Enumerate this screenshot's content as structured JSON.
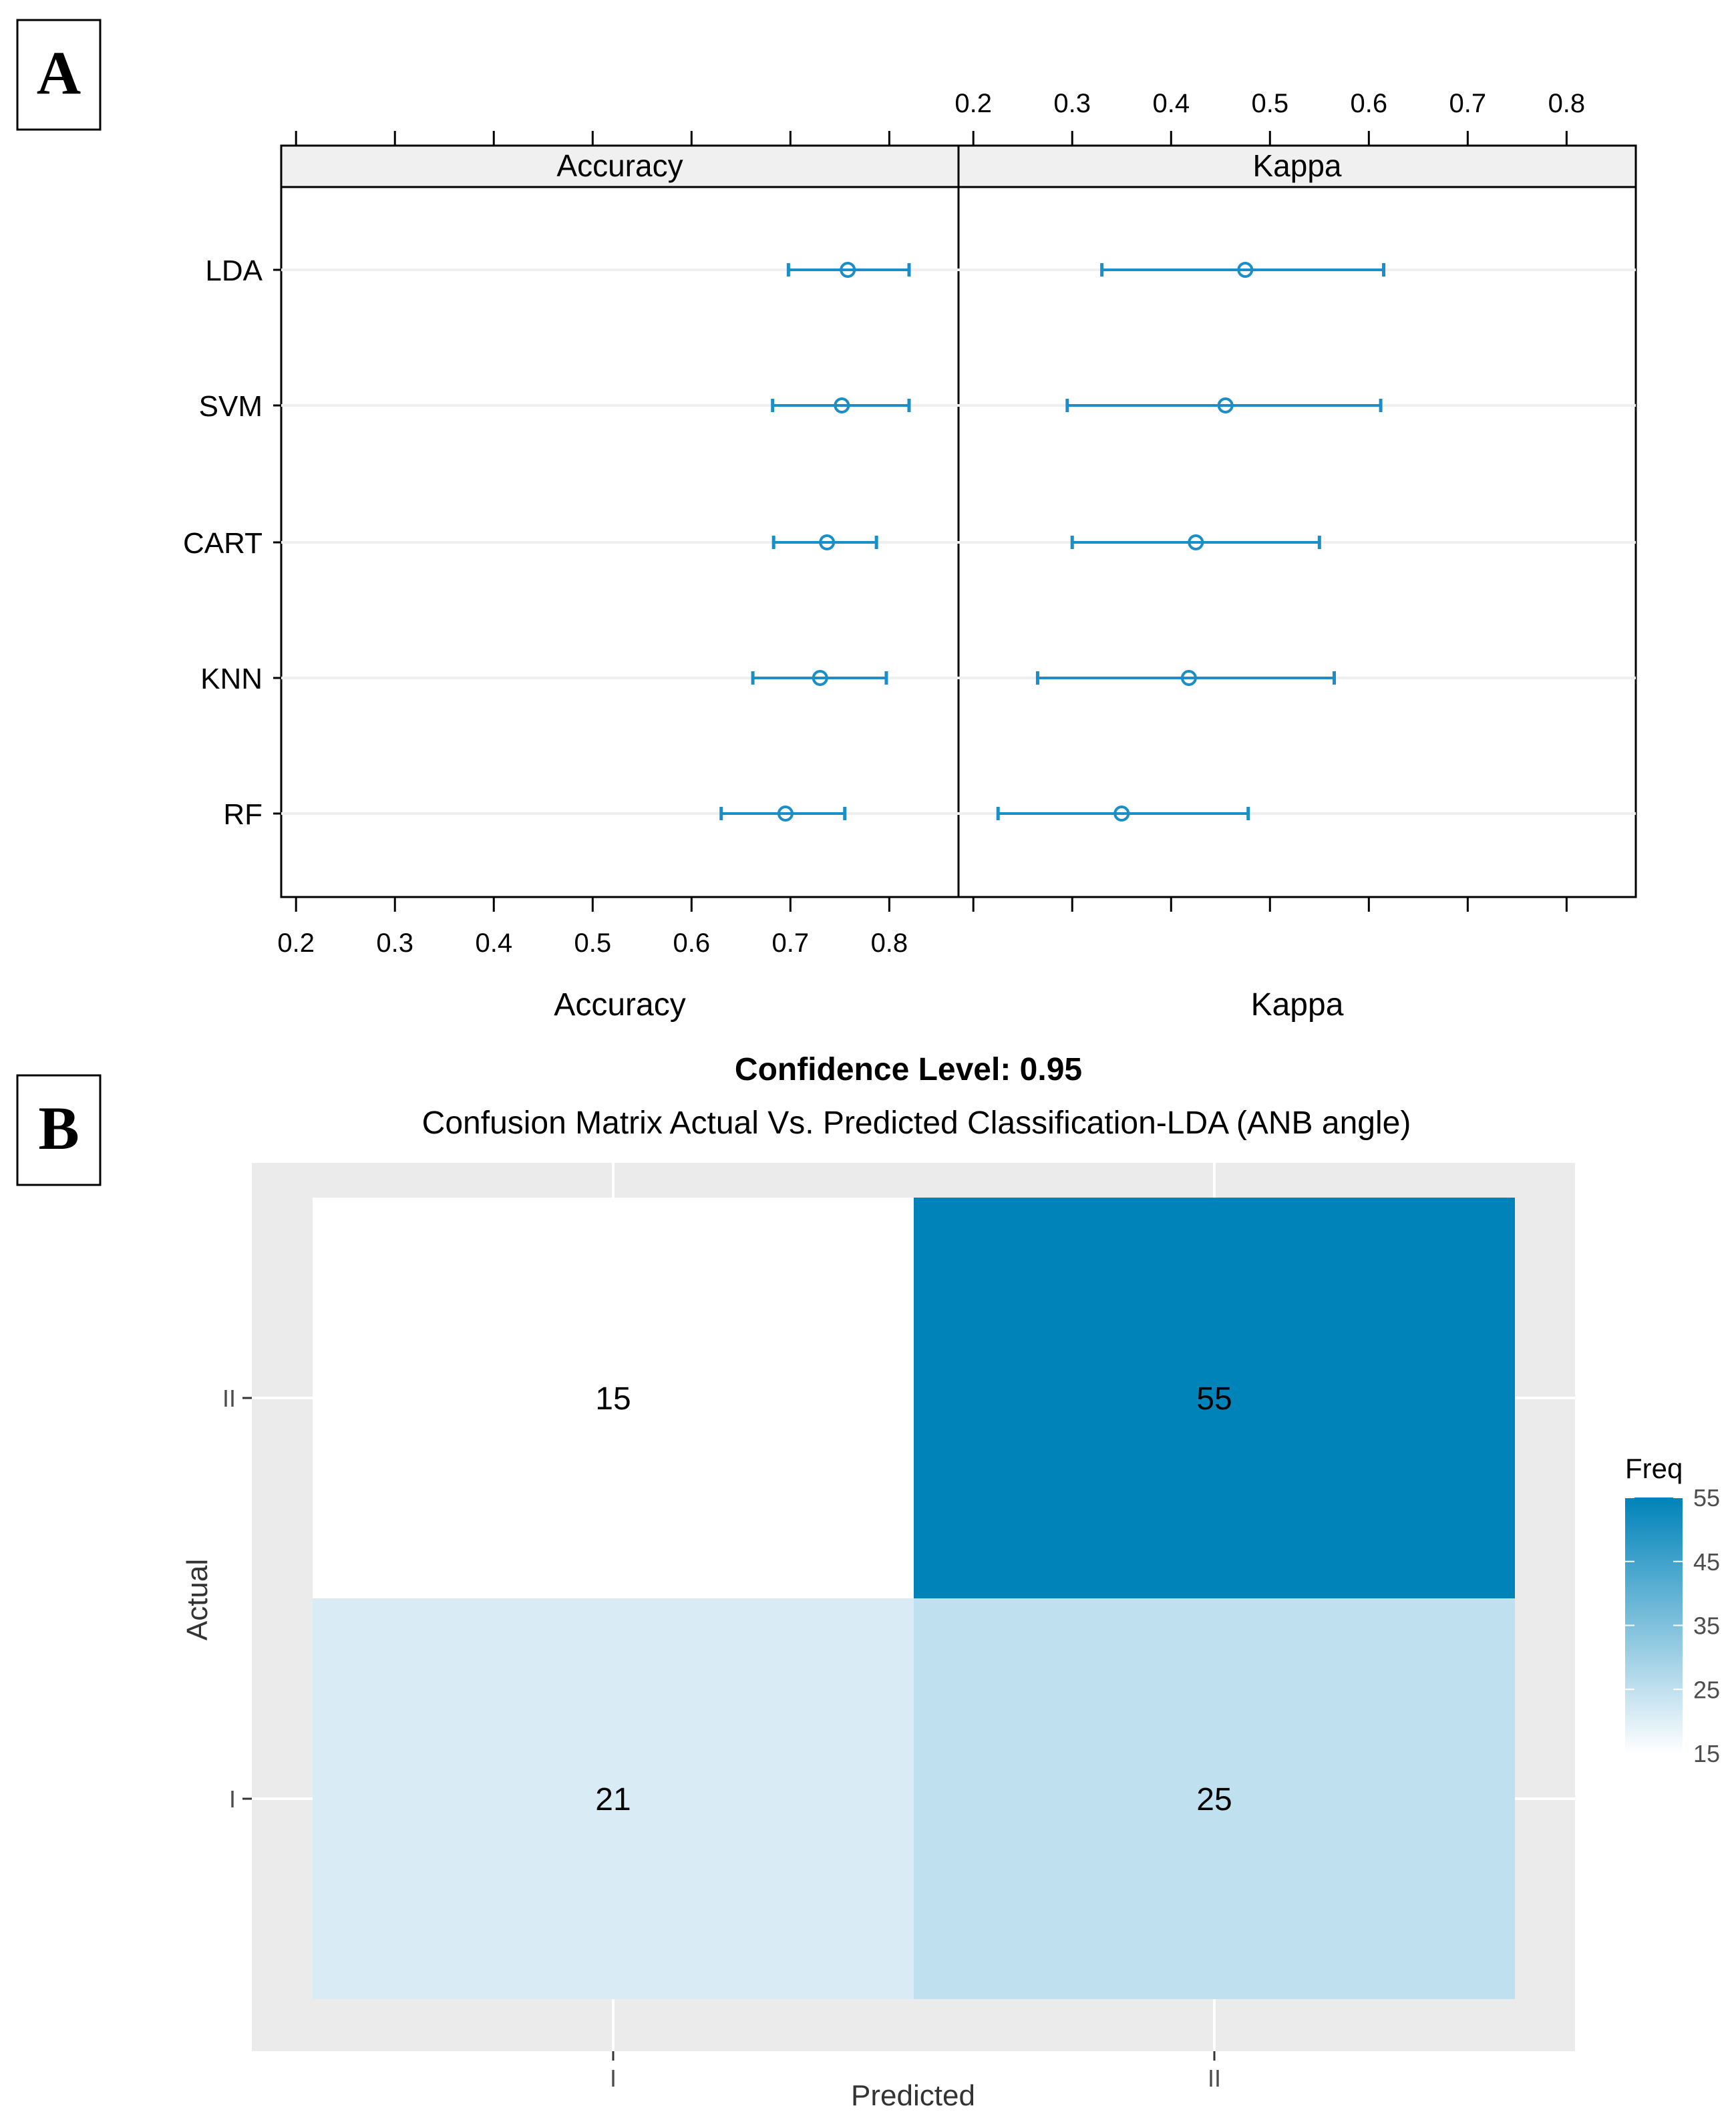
{
  "panel_a": {
    "label": "A"
  },
  "panel_b": {
    "label": "B"
  },
  "chart_data": [
    {
      "type": "scatter",
      "chart_kind": "dotplot-with-intervals",
      "panels": [
        "Accuracy",
        "Kappa"
      ],
      "categories": [
        "LDA",
        "SVM",
        "CART",
        "KNN",
        "RF"
      ],
      "xlabel": [
        "Accuracy",
        "Kappa"
      ],
      "caption": "Confidence Level: 0.95",
      "xlim": [
        0.185,
        0.87
      ],
      "top_ticks": [
        0.2,
        0.3,
        0.4,
        0.5,
        0.6,
        0.7,
        0.8
      ],
      "bottom_ticks": [
        0.2,
        0.3,
        0.4,
        0.5,
        0.6,
        0.7,
        0.8
      ],
      "series": [
        {
          "name": "Accuracy",
          "estimate": [
            0.758,
            0.752,
            0.737,
            0.73,
            0.695
          ],
          "lower": [
            0.698,
            0.682,
            0.683,
            0.662,
            0.63
          ],
          "upper": [
            0.82,
            0.82,
            0.787,
            0.797,
            0.755
          ]
        },
        {
          "name": "Kappa",
          "estimate": [
            0.475,
            0.455,
            0.425,
            0.418,
            0.35
          ],
          "lower": [
            0.33,
            0.295,
            0.3,
            0.265,
            0.225
          ],
          "upper": [
            0.615,
            0.612,
            0.55,
            0.565,
            0.478
          ]
        }
      ],
      "grid": true,
      "colors": {
        "interval": "#1a8ec8",
        "strip": "#f0f0f0",
        "grid": "#efefef"
      }
    },
    {
      "type": "heatmap",
      "title": "Confusion Matrix Actual Vs. Predicted Classification-LDA (ANB angle)",
      "xlabel": "Predicted",
      "ylabel": "Actual",
      "x_categories": [
        "I",
        "II"
      ],
      "y_categories": [
        "I",
        "II"
      ],
      "cells": [
        {
          "x": "I",
          "y": "II",
          "value": 15,
          "label": "15"
        },
        {
          "x": "II",
          "y": "II",
          "value": 55,
          "label": "55"
        },
        {
          "x": "I",
          "y": "I",
          "value": 21,
          "label": "21"
        },
        {
          "x": "II",
          "y": "I",
          "value": 25,
          "label": "25"
        }
      ],
      "legend": {
        "title": "Freq",
        "ticks": [
          55,
          45,
          35,
          25,
          15
        ],
        "range": [
          15,
          55
        ],
        "low_color": "#ffffff",
        "high_color": "#0083b9",
        "placement": "right"
      },
      "grid": true,
      "colors": {
        "background": "#ebebeb",
        "gridline": "#ffffff"
      }
    }
  ]
}
